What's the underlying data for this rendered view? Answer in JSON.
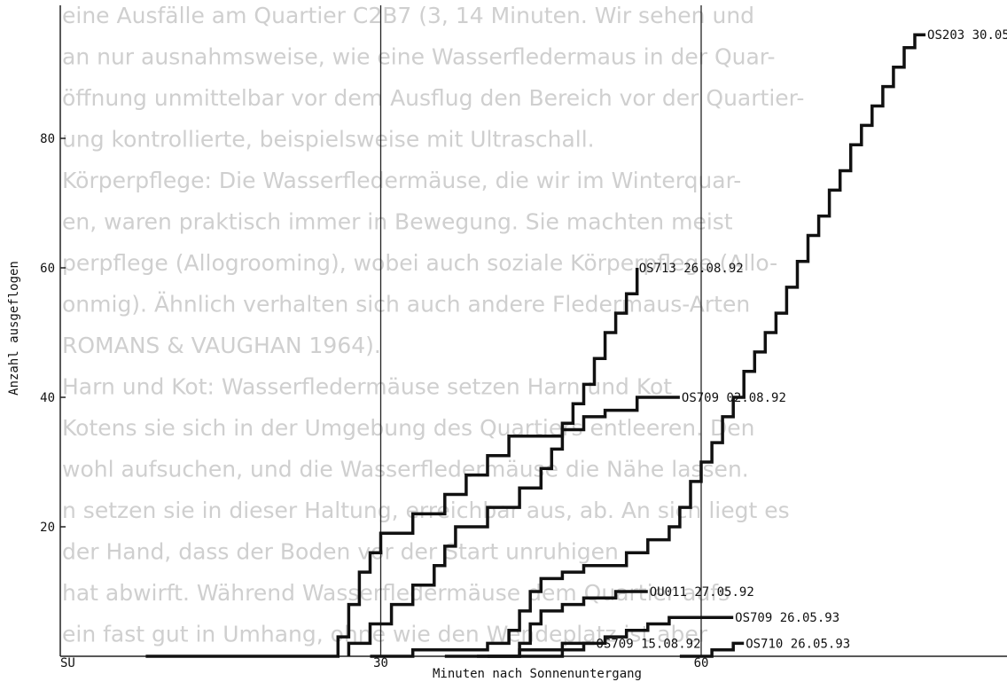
{
  "background_text": [
    "eine Ausfälle am Quartier C2B7 (3, 14 Minuten. Wir sehen und",
    "an nur ausnahmsweise, wie eine Wasserfledermaus in der Quar-",
    "öffnung unmittelbar vor dem Ausflug den Bereich vor der Quartier-",
    "ung kontrollierte, beispielsweise mit Ultraschall.",
    "Körperpflege: Die Wasserfledermäuse, die wir im Winterquar-",
    "en, waren praktisch immer in Bewegung. Sie machten meist",
    "perpflege (Allogrooming), wobei auch soziale Körperpflege (Allo-",
    "onmig). Ähnlich verhalten sich auch andere Fledermaus-Arten",
    "ROMANS & VAUGHAN 1964).",
    "Harn und Kot: Wasserfledermäuse setzen Harn und Kot",
    "Kotens sie sich in der Umgebung des Quartiers entleeren. Den",
    "wohl aufsuchen, und die Wasserfledermäuse die Nähe lassen.",
    "n setzen sie in dieser Haltung, erreichbar aus, ab. An sich liegt es",
    "der Hand, dass der Boden vor der Start unruhigen",
    "hat abwirft. Während Wasserfledermäuse dem Quartier aufs",
    "ein fast gut in Umhang, ohne wie den Wendeplatz ist aber"
  ],
  "chart_data": {
    "type": "line",
    "step": true,
    "xlabel": "Minuten nach Sonnenuntergang",
    "ylabel": "Anzahl ausgeflogen",
    "x_ticks": [
      {
        "value": 0,
        "label": "SU"
      },
      {
        "value": 30,
        "label": "30"
      },
      {
        "value": 60,
        "label": "60"
      }
    ],
    "y_ticks": [
      20,
      40,
      60,
      80
    ],
    "xlim": [
      0,
      88
    ],
    "ylim": [
      0,
      97
    ],
    "series": [
      {
        "name": "OS713 26.08.92",
        "points": [
          [
            8,
            0
          ],
          [
            26,
            0
          ],
          [
            26,
            3
          ],
          [
            27,
            3
          ],
          [
            27,
            8
          ],
          [
            28,
            8
          ],
          [
            28,
            13
          ],
          [
            29,
            13
          ],
          [
            29,
            16
          ],
          [
            30,
            16
          ],
          [
            30,
            19
          ],
          [
            33,
            19
          ],
          [
            33,
            22
          ],
          [
            36,
            22
          ],
          [
            36,
            25
          ],
          [
            38,
            25
          ],
          [
            38,
            28
          ],
          [
            40,
            28
          ],
          [
            40,
            31
          ],
          [
            42,
            31
          ],
          [
            42,
            34
          ],
          [
            47,
            34
          ],
          [
            47,
            36
          ],
          [
            48,
            36
          ],
          [
            48,
            39
          ],
          [
            49,
            39
          ],
          [
            49,
            42
          ],
          [
            50,
            42
          ],
          [
            50,
            46
          ],
          [
            51,
            46
          ],
          [
            51,
            50
          ],
          [
            52,
            50
          ],
          [
            52,
            53
          ],
          [
            53,
            53
          ],
          [
            53,
            56
          ],
          [
            54,
            56
          ],
          [
            54,
            60
          ]
        ],
        "label_x": 54,
        "label_y": 60
      },
      {
        "name": "OS709 02.08.92",
        "points": [
          [
            27,
            0
          ],
          [
            27,
            2
          ],
          [
            29,
            2
          ],
          [
            29,
            5
          ],
          [
            31,
            5
          ],
          [
            31,
            8
          ],
          [
            33,
            8
          ],
          [
            33,
            11
          ],
          [
            35,
            11
          ],
          [
            35,
            14
          ],
          [
            36,
            14
          ],
          [
            36,
            17
          ],
          [
            37,
            17
          ],
          [
            37,
            20
          ],
          [
            40,
            20
          ],
          [
            40,
            23
          ],
          [
            43,
            23
          ],
          [
            43,
            26
          ],
          [
            45,
            26
          ],
          [
            45,
            29
          ],
          [
            46,
            29
          ],
          [
            46,
            32
          ],
          [
            47,
            32
          ],
          [
            47,
            35
          ],
          [
            49,
            35
          ],
          [
            49,
            37
          ],
          [
            51,
            37
          ],
          [
            51,
            38
          ],
          [
            54,
            38
          ],
          [
            54,
            40
          ],
          [
            58,
            40
          ]
        ],
        "label_x": 58,
        "label_y": 40
      },
      {
        "name": "OS203 30.05.92",
        "points": [
          [
            29,
            0
          ],
          [
            33,
            0
          ],
          [
            33,
            1
          ],
          [
            40,
            1
          ],
          [
            40,
            2
          ],
          [
            42,
            2
          ],
          [
            42,
            4
          ],
          [
            43,
            4
          ],
          [
            43,
            7
          ],
          [
            44,
            7
          ],
          [
            44,
            10
          ],
          [
            45,
            10
          ],
          [
            45,
            12
          ],
          [
            47,
            12
          ],
          [
            47,
            13
          ],
          [
            49,
            13
          ],
          [
            49,
            14
          ],
          [
            53,
            14
          ],
          [
            53,
            16
          ],
          [
            55,
            16
          ],
          [
            55,
            18
          ],
          [
            57,
            18
          ],
          [
            57,
            20
          ],
          [
            58,
            20
          ],
          [
            58,
            23
          ],
          [
            59,
            23
          ],
          [
            59,
            27
          ],
          [
            60,
            27
          ],
          [
            60,
            30
          ],
          [
            61,
            30
          ],
          [
            61,
            33
          ],
          [
            62,
            33
          ],
          [
            62,
            37
          ],
          [
            63,
            37
          ],
          [
            63,
            40
          ],
          [
            64,
            40
          ],
          [
            64,
            44
          ],
          [
            65,
            44
          ],
          [
            65,
            47
          ],
          [
            66,
            47
          ],
          [
            66,
            50
          ],
          [
            67,
            50
          ],
          [
            67,
            53
          ],
          [
            68,
            53
          ],
          [
            68,
            57
          ],
          [
            69,
            57
          ],
          [
            69,
            61
          ],
          [
            70,
            61
          ],
          [
            70,
            65
          ],
          [
            71,
            65
          ],
          [
            71,
            68
          ],
          [
            72,
            68
          ],
          [
            72,
            72
          ],
          [
            73,
            72
          ],
          [
            73,
            75
          ],
          [
            74,
            75
          ],
          [
            74,
            79
          ],
          [
            75,
            79
          ],
          [
            75,
            82
          ],
          [
            76,
            82
          ],
          [
            76,
            85
          ],
          [
            77,
            85
          ],
          [
            77,
            88
          ],
          [
            78,
            88
          ],
          [
            78,
            91
          ],
          [
            79,
            91
          ],
          [
            79,
            94
          ],
          [
            80,
            94
          ],
          [
            80,
            96
          ],
          [
            81,
            96
          ]
        ],
        "label_x": 81,
        "label_y": 96
      },
      {
        "name": "OU011 27.05.92",
        "points": [
          [
            36,
            0
          ],
          [
            43,
            0
          ],
          [
            43,
            2
          ],
          [
            44,
            2
          ],
          [
            44,
            5
          ],
          [
            45,
            5
          ],
          [
            45,
            7
          ],
          [
            47,
            7
          ],
          [
            47,
            8
          ],
          [
            49,
            8
          ],
          [
            49,
            9
          ],
          [
            52,
            9
          ],
          [
            52,
            10
          ],
          [
            55,
            10
          ]
        ],
        "label_x": 55,
        "label_y": 10
      },
      {
        "name": "OS709 26.05.93",
        "points": [
          [
            40,
            0
          ],
          [
            47,
            0
          ],
          [
            47,
            1
          ],
          [
            49,
            1
          ],
          [
            49,
            2
          ],
          [
            51,
            2
          ],
          [
            51,
            3
          ],
          [
            53,
            3
          ],
          [
            53,
            4
          ],
          [
            55,
            4
          ],
          [
            55,
            5
          ],
          [
            57,
            5
          ],
          [
            57,
            6
          ],
          [
            63,
            6
          ]
        ],
        "label_x": 63,
        "label_y": 6
      },
      {
        "name": "OS709 15.08.92",
        "points": [
          [
            39,
            0
          ],
          [
            43,
            0
          ],
          [
            43,
            1
          ],
          [
            47,
            1
          ],
          [
            47,
            2
          ],
          [
            50,
            2
          ]
        ],
        "label_x": 50,
        "label_y": 2
      },
      {
        "name": "OS710 26.05.93",
        "points": [
          [
            58,
            0
          ],
          [
            61,
            0
          ],
          [
            61,
            1
          ],
          [
            63,
            1
          ],
          [
            63,
            2
          ],
          [
            64,
            2
          ]
        ],
        "label_x": 64,
        "label_y": 2
      }
    ]
  }
}
